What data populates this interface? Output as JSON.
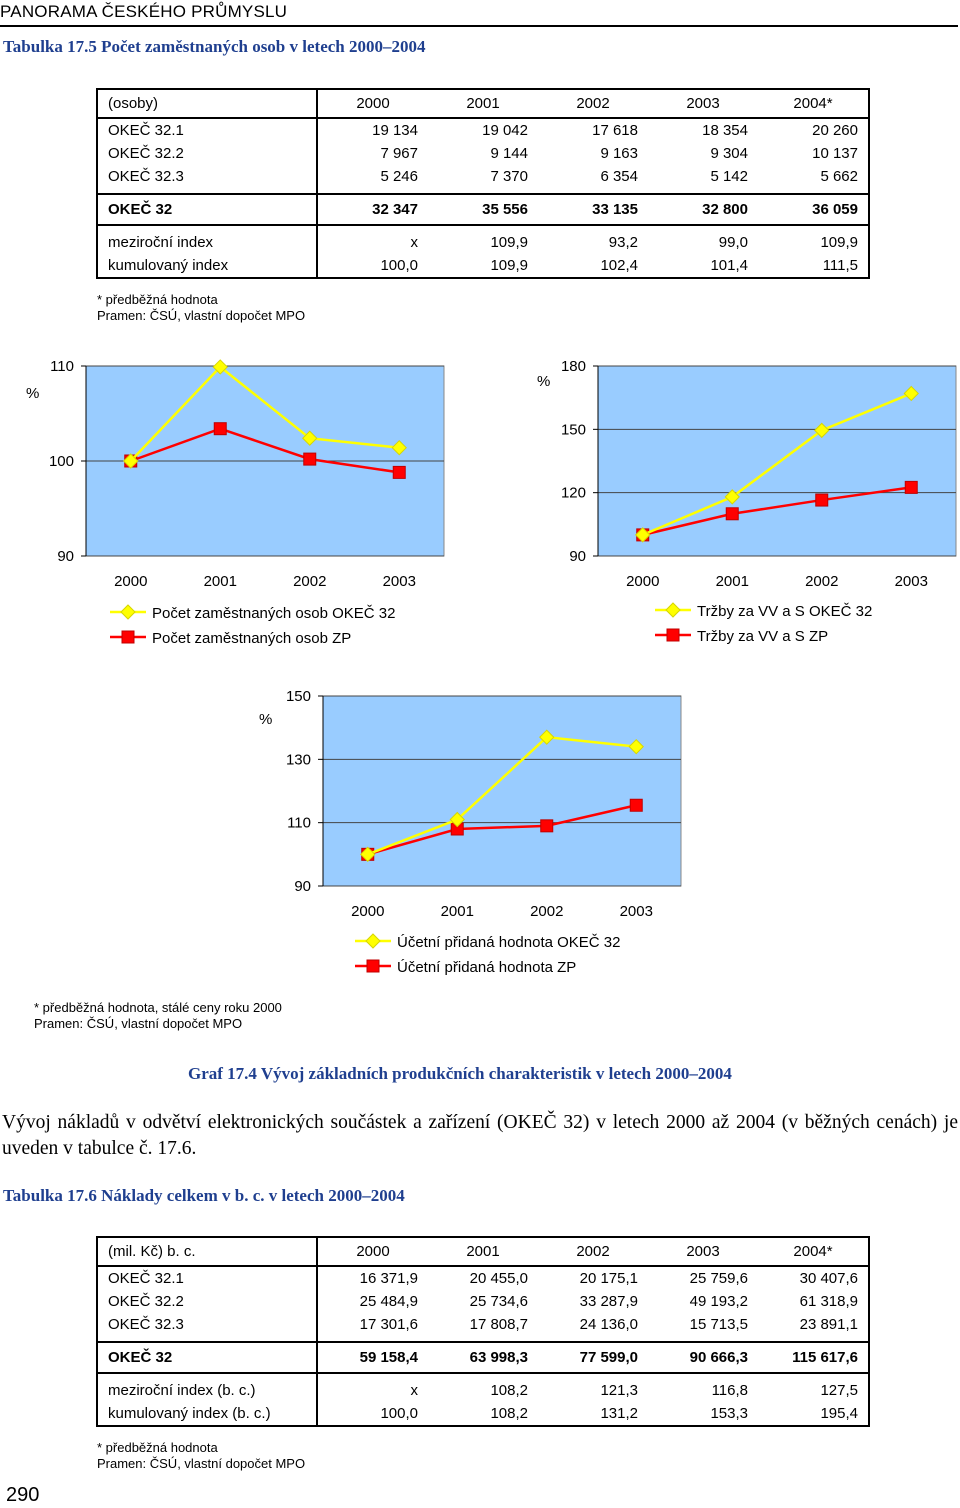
{
  "running_header": "PANORAMA ČESKÉHO PRŮMYSLU",
  "table1": {
    "caption": "Tabulka 17.5 Počet zaměstnaných osob v letech 2000–2004",
    "columns": [
      "(osoby)",
      "2000",
      "2001",
      "2002",
      "2003",
      "2004*"
    ],
    "rows": [
      [
        "OKEČ 32.1",
        "19 134",
        "19 042",
        "17 618",
        "18 354",
        "20 260"
      ],
      [
        "OKEČ 32.2",
        "7 967",
        "9 144",
        "9 163",
        "9 304",
        "10 137"
      ],
      [
        "OKEČ 32.3",
        "5 246",
        "7 370",
        "6 354",
        "5 142",
        "5 662"
      ],
      [
        "OKEČ 32",
        "32 347",
        "35 556",
        "33 135",
        "32 800",
        "36 059"
      ],
      [
        "meziroční index",
        "x",
        "109,9",
        "93,2",
        "99,0",
        "109,9"
      ],
      [
        "kumulovaný index",
        "100,0",
        "109,9",
        "102,4",
        "101,4",
        "111,5"
      ]
    ],
    "note": "* předběžná hodnota",
    "source": "Pramen: ČSÚ, vlastní dopočet MPO"
  },
  "charts_common": {
    "ylabel": "%",
    "color_okec": "#ffff00",
    "color_zp": "#ff0000",
    "plot_bg": "#99ccff"
  },
  "chart_data": [
    {
      "type": "line",
      "title": "Počet zaměstnaných osob",
      "categories": [
        "2000",
        "2001",
        "2002",
        "2003"
      ],
      "ylim": [
        90,
        110
      ],
      "yticks": [
        "90",
        "100",
        "110"
      ],
      "ylabel": "%",
      "series": [
        {
          "name": "Počet zaměstnaných osob OKEČ 32",
          "values": [
            100.0,
            109.9,
            102.4,
            101.4
          ]
        },
        {
          "name": "Počet zaměstnaných osob ZP",
          "values": [
            100.0,
            103.4,
            100.2,
            98.8
          ]
        }
      ]
    },
    {
      "type": "line",
      "title": "Tržby za VV a S",
      "categories": [
        "2000",
        "2001",
        "2002",
        "2003"
      ],
      "ylim": [
        90,
        180
      ],
      "yticks": [
        "90",
        "120",
        "150",
        "180"
      ],
      "ylabel": "%",
      "series": [
        {
          "name": "Tržby za VV a S OKEČ 32",
          "values": [
            100.0,
            118.0,
            149.5,
            167.0
          ]
        },
        {
          "name": "Tržby za VV a S ZP",
          "values": [
            100.0,
            110.0,
            116.5,
            122.5
          ]
        }
      ]
    },
    {
      "type": "line",
      "title": "Účetní přidaná hodnota",
      "categories": [
        "2000",
        "2001",
        "2002",
        "2003"
      ],
      "ylim": [
        90,
        150
      ],
      "yticks": [
        "90",
        "110",
        "130",
        "150"
      ],
      "ylabel": "%",
      "series": [
        {
          "name": "Účetní přidaná hodnota OKEČ 32",
          "values": [
            100.0,
            111.0,
            137.0,
            134.0
          ]
        },
        {
          "name": "Účetní přidaná hodnota ZP",
          "values": [
            100.0,
            108.0,
            109.0,
            115.5
          ]
        }
      ]
    }
  ],
  "figure": {
    "note": "* předběžná hodnota, stálé ceny roku 2000",
    "source": "Pramen: ČSÚ, vlastní dopočet MPO",
    "caption": "Graf 17.4 Vývoj základních produkčních charakteristik v letech 2000–2004"
  },
  "body_text": "Vývoj nákladů v odvětví elektronických součástek a zařízení (OKEČ 32) v letech 2000 až 2004 (v běžných cenách) je uveden v tabulce č. 17.6.",
  "table2": {
    "caption": "Tabulka 17.6 Náklady celkem v b. c. v letech 2000–2004",
    "columns": [
      "(mil. Kč) b. c.",
      "2000",
      "2001",
      "2002",
      "2003",
      "2004*"
    ],
    "rows": [
      [
        "OKEČ 32.1",
        "16 371,9",
        "20 455,0",
        "20 175,1",
        "25 759,6",
        "30 407,6"
      ],
      [
        "OKEČ 32.2",
        "25 484,9",
        "25 734,6",
        "33 287,9",
        "49 193,2",
        "61 318,9"
      ],
      [
        "OKEČ 32.3",
        "17 301,6",
        "17 808,7",
        "24 136,0",
        "15 713,5",
        "23 891,1"
      ],
      [
        "OKEČ 32",
        "59 158,4",
        "63 998,3",
        "77 599,0",
        "90 666,3",
        "115 617,6"
      ],
      [
        "meziroční index (b. c.)",
        "x",
        "108,2",
        "121,3",
        "116,8",
        "127,5"
      ],
      [
        "kumulovaný index (b. c.)",
        "100,0",
        "108,2",
        "131,2",
        "153,3",
        "195,4"
      ]
    ],
    "note": "* předběžná hodnota",
    "source": "Pramen: ČSÚ, vlastní dopočet MPO"
  },
  "page_number": "290"
}
